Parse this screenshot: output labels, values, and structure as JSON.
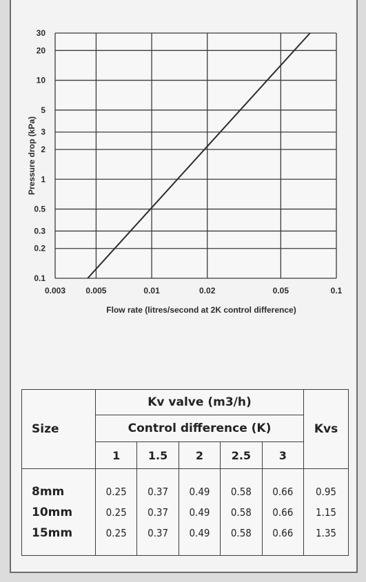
{
  "chart_data": {
    "type": "line",
    "x_scale": "log",
    "y_scale": "log",
    "xlabel": "Flow rate (litres/second at 2K control difference)",
    "ylabel": "Pressure drop (kPa)",
    "xlim": [
      0.003,
      0.1
    ],
    "ylim": [
      0.1,
      30
    ],
    "x_ticks": [
      "0.003",
      "0.005",
      "0.01",
      "0.02",
      "0.05",
      "0.1"
    ],
    "y_ticks": [
      "0.1",
      "0.2",
      "0.3",
      "0.5",
      "1",
      "2",
      "3",
      "5",
      "10",
      "20",
      "30"
    ],
    "grid": true,
    "series": [
      {
        "x": [
          0.0045,
          0.072
        ],
        "y": [
          0.1,
          30
        ]
      }
    ]
  },
  "table": {
    "size_header": "Size",
    "kv_header": "Kv valve (m3/h)",
    "control_header": "Control difference (K)",
    "kvs_header": "Kvs",
    "diff_columns": [
      "1",
      "1.5",
      "2",
      "2.5",
      "3"
    ],
    "rows": [
      {
        "size": "8mm",
        "values": [
          "0.25",
          "0.37",
          "0.49",
          "0.58",
          "0.66"
        ],
        "kvs": "0.95"
      },
      {
        "size": "10mm",
        "values": [
          "0.25",
          "0.37",
          "0.49",
          "0.58",
          "0.66"
        ],
        "kvs": "1.15"
      },
      {
        "size": "15mm",
        "values": [
          "0.25",
          "0.37",
          "0.49",
          "0.58",
          "0.66"
        ],
        "kvs": "1.35"
      }
    ]
  }
}
